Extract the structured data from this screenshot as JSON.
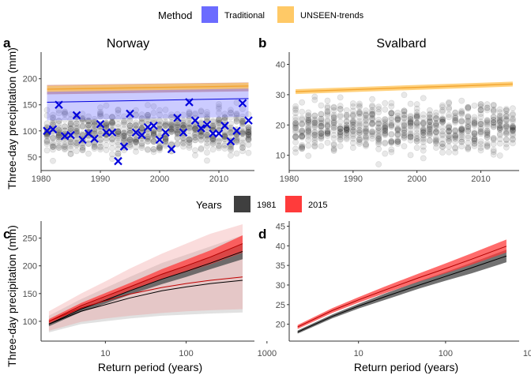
{
  "legend_method": {
    "title": "Method",
    "items": [
      {
        "label": "Traditional",
        "color": "#6b6bff"
      },
      {
        "label": "UNSEEN-trends",
        "color": "#ffc966"
      }
    ]
  },
  "legend_years": {
    "title": "Years",
    "items": [
      {
        "label": "1981",
        "color": "#3f3f3f"
      },
      {
        "label": "2015",
        "color": "#ff3b3b"
      }
    ]
  },
  "shared_ylabel": "Three-day precipitation (mm)",
  "chart_data": [
    {
      "id": "a",
      "panel_label": "a",
      "title": "Norway",
      "type": "scatter",
      "xlim": [
        1980,
        2016
      ],
      "ylim": [
        30,
        245
      ],
      "xticks": [
        1980,
        1990,
        2000,
        2010
      ],
      "yticks": [
        50,
        100,
        150,
        200
      ],
      "ensemble_spread": {
        "low_lo": 42,
        "low_hi": 52,
        "high_lo": 170,
        "high_hi": 180
      },
      "observed": {
        "x": [
          1981,
          1982,
          1983,
          1984,
          1985,
          1986,
          1987,
          1988,
          1989,
          1990,
          1991,
          1992,
          1993,
          1994,
          1995,
          1996,
          1997,
          1998,
          1999,
          2000,
          2001,
          2002,
          2003,
          2004,
          2005,
          2006,
          2007,
          2008,
          2009,
          2010,
          2011,
          2012,
          2013,
          2014,
          2015
        ],
        "y": [
          100,
          103,
          150,
          90,
          92,
          130,
          83,
          95,
          85,
          113,
          97,
          97,
          42,
          70,
          133,
          97,
          92,
          107,
          110,
          83,
          97,
          65,
          125,
          97,
          155,
          120,
          105,
          112,
          95,
          95,
          110,
          80,
          100,
          153,
          120
        ]
      },
      "traditional": {
        "start": 155,
        "end": 162,
        "band_start": [
          120,
          185
        ],
        "band_end": [
          127,
          190
        ]
      },
      "unseen_trends": {
        "start": 180,
        "end": 186,
        "band_start": [
          175,
          186
        ],
        "band_end": [
          181,
          192
        ]
      },
      "shaded_band": {
        "start": [
          170,
          188
        ],
        "end": [
          176,
          193
        ]
      }
    },
    {
      "id": "b",
      "panel_label": "b",
      "title": "Svalbard",
      "type": "scatter",
      "xlim": [
        1980,
        2016
      ],
      "ylim": [
        6,
        43
      ],
      "xticks": [
        1980,
        1990,
        2000,
        2010
      ],
      "yticks": [
        10,
        20,
        30,
        40
      ],
      "ensemble_spread": {
        "low_lo": 7,
        "low_hi": 9,
        "high_lo": 34,
        "high_hi": 36
      },
      "unseen_trends": {
        "start": 31,
        "end": 33.5,
        "band_start": [
          30.2,
          31.8
        ],
        "band_end": [
          32.7,
          34.3
        ]
      }
    },
    {
      "id": "c",
      "panel_label": "c",
      "type": "line",
      "xlabel": "Return period (years)",
      "x_scale": "log",
      "xlim": [
        1.6,
        700
      ],
      "ylim": [
        70,
        275
      ],
      "xticks": [
        10,
        100,
        1000
      ],
      "yticks": [
        100,
        150,
        200,
        250
      ],
      "x": [
        2,
        5,
        10,
        20,
        50,
        100,
        200,
        500
      ],
      "series": [
        {
          "name": "1981",
          "color": "#3f3f3f",
          "central": [
            95,
            122,
            138,
            155,
            176,
            190,
            205,
            226
          ],
          "lo": [
            91,
            117,
            132,
            148,
            167,
            180,
            194,
            212
          ],
          "hi": [
            99,
            127,
            144,
            162,
            185,
            200,
            216,
            240
          ],
          "nonstat": [
            95,
            118,
            130,
            142,
            155,
            162,
            168,
            174
          ],
          "nonstat_lo": [
            80,
            95,
            100,
            105,
            110,
            112,
            114,
            116
          ],
          "nonstat_hi": [
            110,
            140,
            160,
            180,
            205,
            220,
            235,
            255
          ]
        },
        {
          "name": "2015",
          "color": "#ff3b3b",
          "central": [
            100,
            128,
            145,
            162,
            185,
            200,
            216,
            240
          ],
          "lo": [
            96,
            123,
            139,
            155,
            176,
            189,
            203,
            224
          ],
          "hi": [
            104,
            133,
            151,
            169,
            194,
            211,
            228,
            255
          ],
          "nonstat": [
            100,
            124,
            137,
            149,
            161,
            168,
            174,
            180
          ],
          "nonstat_lo": [
            83,
            99,
            105,
            110,
            115,
            118,
            120,
            122
          ],
          "nonstat_hi": [
            118,
            150,
            172,
            195,
            222,
            240,
            258,
            275
          ]
        }
      ]
    },
    {
      "id": "d",
      "panel_label": "d",
      "type": "line",
      "xlabel": "Return period (years)",
      "x_scale": "log",
      "xlim": [
        1.6,
        700
      ],
      "ylim": [
        16.5,
        45.5
      ],
      "xticks": [
        10,
        100,
        1000
      ],
      "yticks": [
        20,
        25,
        30,
        35,
        40,
        45
      ],
      "x": [
        2,
        5,
        10,
        20,
        50,
        100,
        200,
        500
      ],
      "series": [
        {
          "name": "1981",
          "color": "#3f3f3f",
          "central": [
            18,
            22,
            24.6,
            27,
            30,
            32.2,
            34.4,
            37.4
          ],
          "lo": [
            17.6,
            21.5,
            24,
            26.2,
            29.1,
            31.1,
            33,
            35.8
          ],
          "hi": [
            18.4,
            22.5,
            25.2,
            27.8,
            31,
            33.3,
            35.7,
            39
          ]
        },
        {
          "name": "2015",
          "color": "#ff3b3b",
          "central": [
            19.3,
            23.5,
            26.2,
            28.7,
            31.9,
            34.2,
            36.6,
            39.9
          ],
          "lo": [
            18.8,
            22.9,
            25.5,
            27.9,
            30.9,
            33,
            35.2,
            38.3
          ],
          "hi": [
            19.8,
            24.1,
            26.9,
            29.6,
            33,
            35.5,
            38.1,
            41.6
          ]
        }
      ]
    }
  ]
}
